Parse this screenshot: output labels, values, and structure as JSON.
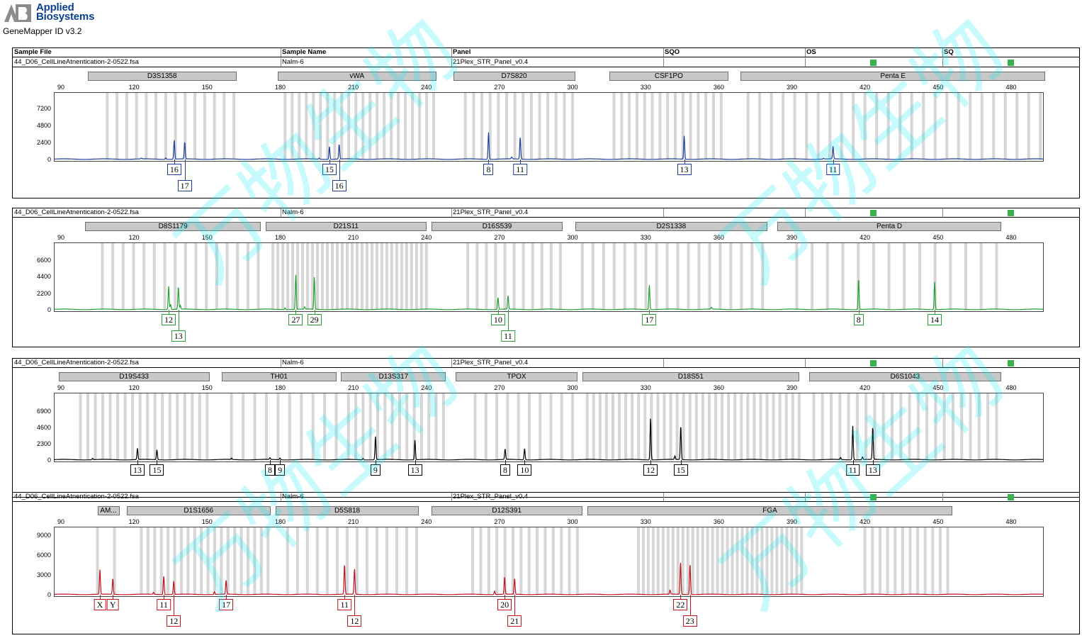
{
  "brand": {
    "line1": "Applied",
    "line2": "Biosystems",
    "app_version": "GeneMapper ID v3.2"
  },
  "columns": [
    "Sample File",
    "Sample Name",
    "Panel",
    "SQO",
    "OS",
    "SQ"
  ],
  "colors": {
    "blue": "#1f3f99",
    "green": "#25a035",
    "black": "#000000",
    "red": "#c0141c",
    "ok": "#37b24d"
  },
  "x_ticks": [
    90,
    120,
    150,
    180,
    210,
    240,
    270,
    300,
    330,
    360,
    390,
    420,
    450,
    480
  ],
  "panels": [
    {
      "sample_file": "44_D06_CellLineAtnentication-2-0522.fsa",
      "sample_name": "Nalm-6",
      "panel": "21Plex_STR_Panel_v0.4",
      "dye": "blue",
      "y_ticks": [
        7200,
        4800,
        2400,
        0
      ],
      "y_max": 8900,
      "loci": [
        {
          "name": "D3S1358",
          "start": 101,
          "end": 162
        },
        {
          "name": "vWA",
          "start": 179,
          "end": 244
        },
        {
          "name": "D7S820",
          "start": 251,
          "end": 301
        },
        {
          "name": "CSF1PO",
          "start": 315,
          "end": 364
        },
        {
          "name": "Penta E",
          "start": 369,
          "end": 494
        }
      ],
      "peaks": [
        {
          "x": 136.5,
          "h": 2700,
          "allele": "16",
          "row": 0
        },
        {
          "x": 140.8,
          "h": 2400,
          "allele": "17",
          "row": 1
        },
        {
          "x": 200.2,
          "h": 1800,
          "allele": "15",
          "row": 0
        },
        {
          "x": 204.2,
          "h": 2100,
          "allele": "16",
          "row": 1
        },
        {
          "x": 265.5,
          "h": 3800,
          "allele": "8",
          "row": 0
        },
        {
          "x": 278.5,
          "h": 3100,
          "allele": "11",
          "row": 0
        },
        {
          "x": 345.8,
          "h": 3300,
          "allele": "13",
          "row": 0
        },
        {
          "x": 406.9,
          "h": 1800,
          "allele": "11",
          "row": 0
        }
      ],
      "small_peaks": [
        {
          "x": 123,
          "h": 120
        },
        {
          "x": 133,
          "h": 200
        },
        {
          "x": 196,
          "h": 160
        },
        {
          "x": 275,
          "h": 260
        },
        {
          "x": 403,
          "h": 120
        }
      ],
      "bins": [
        {
          "start": 109,
          "end": 161,
          "n": 14
        },
        {
          "start": 182,
          "end": 243,
          "n": 22
        },
        {
          "start": 256,
          "end": 300,
          "n": 14
        },
        {
          "start": 317,
          "end": 361,
          "n": 15
        },
        {
          "start": 372,
          "end": 492,
          "n": 26
        }
      ]
    },
    {
      "sample_file": "44_D06_CellLineAtnentication-2-0522.fsa",
      "sample_name": "Nalm-6",
      "panel": "21Plex_STR_Panel_v0.4",
      "dye": "green",
      "y_ticks": [
        6600,
        4400,
        2200,
        0
      ],
      "y_max": 8400,
      "loci": [
        {
          "name": "D8S1179",
          "start": 100,
          "end": 172
        },
        {
          "name": "D21S11",
          "start": 174,
          "end": 240
        },
        {
          "name": "D16S539",
          "start": 242,
          "end": 296
        },
        {
          "name": "D2S1338",
          "start": 301,
          "end": 380
        },
        {
          "name": "Penta D",
          "start": 384,
          "end": 476
        }
      ],
      "peaks": [
        {
          "x": 134.2,
          "h": 3100,
          "allele": "12",
          "row": 0
        },
        {
          "x": 138.2,
          "h": 3000,
          "allele": "13",
          "row": 1
        },
        {
          "x": 186.4,
          "h": 4600,
          "allele": "27",
          "row": 0
        },
        {
          "x": 194.0,
          "h": 4300,
          "allele": "29",
          "row": 0
        },
        {
          "x": 269.4,
          "h": 1600,
          "allele": "10",
          "row": 0
        },
        {
          "x": 273.5,
          "h": 1800,
          "allele": "11",
          "row": 1
        },
        {
          "x": 331.5,
          "h": 3300,
          "allele": "17",
          "row": 0
        },
        {
          "x": 417.4,
          "h": 4100,
          "allele": "8",
          "row": 0
        },
        {
          "x": 448.6,
          "h": 3700,
          "allele": "14",
          "row": 0
        }
      ],
      "small_peaks": [
        {
          "x": 135,
          "h": 700
        },
        {
          "x": 139,
          "h": 500
        },
        {
          "x": 182,
          "h": 250
        },
        {
          "x": 190,
          "h": 300
        },
        {
          "x": 357,
          "h": 250
        }
      ],
      "bins": [
        {
          "start": 107,
          "end": 171,
          "n": 16
        },
        {
          "start": 177,
          "end": 240,
          "n": 32
        },
        {
          "start": 257,
          "end": 295,
          "n": 11
        },
        {
          "start": 304,
          "end": 378,
          "n": 18
        },
        {
          "start": 392,
          "end": 474,
          "n": 14
        }
      ]
    },
    {
      "sample_file": "44_D06_CellLineAtnentication-2-0522.fsa",
      "sample_name": "Nalm-6",
      "panel": "21Plex_STR_Panel_v0.4",
      "dye": "black",
      "y_ticks": [
        6900,
        4600,
        2300,
        0
      ],
      "y_max": 8900,
      "loci": [
        {
          "name": "D19S433",
          "start": 89,
          "end": 151
        },
        {
          "name": "TH01",
          "start": 156,
          "end": 203
        },
        {
          "name": "D13S317",
          "start": 205,
          "end": 248
        },
        {
          "name": "TPOX",
          "start": 252,
          "end": 302
        },
        {
          "name": "D18S51",
          "start": 304,
          "end": 393
        },
        {
          "name": "D6S1043",
          "start": 397,
          "end": 476
        }
      ],
      "peaks": [
        {
          "x": 121.4,
          "h": 1600,
          "allele": "13",
          "row": 0
        },
        {
          "x": 129.4,
          "h": 1400,
          "allele": "15",
          "row": 0
        },
        {
          "x": 175.8,
          "h": 250,
          "allele": "8",
          "row": 0
        },
        {
          "x": 179.9,
          "h": 250,
          "allele": "9",
          "row": 0
        },
        {
          "x": 219.1,
          "h": 3300,
          "allele": "9",
          "row": 0
        },
        {
          "x": 235.3,
          "h": 2800,
          "allele": "13",
          "row": 0
        },
        {
          "x": 272.3,
          "h": 1500,
          "allele": "8",
          "row": 0
        },
        {
          "x": 280.3,
          "h": 1600,
          "allele": "10",
          "row": 0
        },
        {
          "x": 332.0,
          "h": 5900,
          "allele": "12",
          "row": 0
        },
        {
          "x": 344.4,
          "h": 4800,
          "allele": "15",
          "row": 0
        },
        {
          "x": 415.0,
          "h": 4800,
          "allele": "11",
          "row": 0
        },
        {
          "x": 423.2,
          "h": 4600,
          "allele": "13",
          "row": 0
        }
      ],
      "small_peaks": [
        {
          "x": 103,
          "h": 200
        },
        {
          "x": 160,
          "h": 200
        },
        {
          "x": 214,
          "h": 200
        },
        {
          "x": 342,
          "h": 500
        },
        {
          "x": 419,
          "h": 400
        },
        {
          "x": 410,
          "h": 300
        }
      ],
      "bins": [
        {
          "start": 98,
          "end": 150,
          "n": 18
        },
        {
          "start": 160,
          "end": 203,
          "n": 10
        },
        {
          "start": 208,
          "end": 247,
          "n": 14
        },
        {
          "start": 260,
          "end": 300,
          "n": 10
        },
        {
          "start": 306,
          "end": 393,
          "n": 34
        },
        {
          "start": 399,
          "end": 474,
          "n": 22
        }
      ]
    },
    {
      "sample_file": "44_D06_CellLineAtnentication-2-0522.fsa",
      "sample_name": "Nalm-6",
      "panel": "21Plex_STR_Panel_v0.4",
      "dye": "red",
      "y_ticks": [
        9000,
        6000,
        3000,
        0
      ],
      "y_max": 9600,
      "loci": [
        {
          "name": "AM...",
          "start": 105,
          "end": 114
        },
        {
          "name": "D1S1656",
          "start": 117,
          "end": 176
        },
        {
          "name": "D5S818",
          "start": 178,
          "end": 237
        },
        {
          "name": "D12S391",
          "start": 242,
          "end": 304
        },
        {
          "name": "FGA",
          "start": 306,
          "end": 456
        }
      ],
      "peaks": [
        {
          "x": 106.0,
          "h": 3700,
          "allele": "X",
          "row": 0
        },
        {
          "x": 111.3,
          "h": 2400,
          "allele": "Y",
          "row": 0
        },
        {
          "x": 132.2,
          "h": 2800,
          "allele": "11",
          "row": 0
        },
        {
          "x": 136.3,
          "h": 2000,
          "allele": "12",
          "row": 1
        },
        {
          "x": 157.8,
          "h": 2100,
          "allele": "17",
          "row": 0
        },
        {
          "x": 206.4,
          "h": 4500,
          "allele": "11",
          "row": 0
        },
        {
          "x": 210.5,
          "h": 3900,
          "allele": "12",
          "row": 1
        },
        {
          "x": 272.1,
          "h": 2600,
          "allele": "20",
          "row": 0
        },
        {
          "x": 276.2,
          "h": 2400,
          "allele": "21",
          "row": 1
        },
        {
          "x": 344.3,
          "h": 4800,
          "allele": "22",
          "row": 0
        },
        {
          "x": 348.2,
          "h": 4600,
          "allele": "23",
          "row": 1
        }
      ],
      "small_peaks": [
        {
          "x": 128,
          "h": 300
        },
        {
          "x": 153,
          "h": 400
        },
        {
          "x": 268,
          "h": 500
        },
        {
          "x": 340,
          "h": 600
        }
      ],
      "bins": [
        {
          "start": 105,
          "end": 112,
          "n": 2
        },
        {
          "start": 123,
          "end": 175,
          "n": 20
        },
        {
          "start": 183,
          "end": 236,
          "n": 14
        },
        {
          "start": 259,
          "end": 302,
          "n": 14
        },
        {
          "start": 327,
          "end": 394,
          "n": 34
        },
        {
          "start": 420,
          "end": 454,
          "n": 12
        }
      ]
    }
  ]
}
